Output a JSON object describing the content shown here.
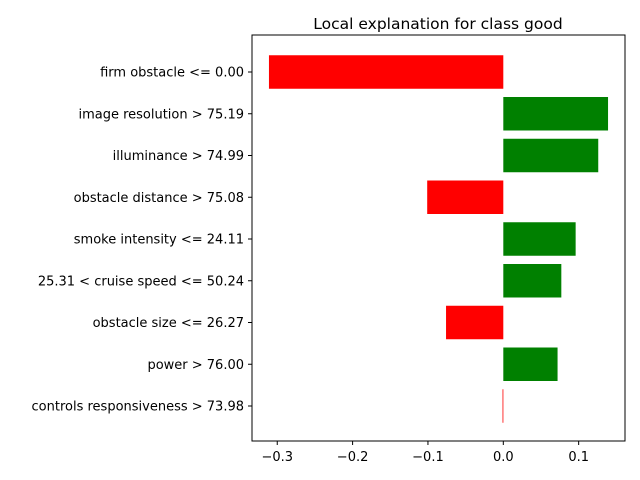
{
  "chart_data": {
    "type": "bar",
    "orientation": "horizontal",
    "title": "Local explanation for class good",
    "xlabel": "",
    "ylabel": "",
    "categories": [
      "firm obstacle <= 0.00",
      "image resolution > 75.19",
      "illuminance > 74.99",
      "obstacle distance > 75.08",
      "smoke intensity <= 24.11",
      "25.31 < cruise speed <= 50.24",
      "obstacle size <= 26.27",
      "power > 76.00",
      "controls responsiveness > 73.98"
    ],
    "values": [
      -0.311,
      0.139,
      0.126,
      -0.101,
      0.096,
      0.077,
      -0.076,
      0.072,
      -0.001
    ],
    "positive_color": "#008000",
    "negative_color": "#ff0000",
    "xlim": [
      -0.3335,
      0.1615
    ],
    "xticks": [
      -0.3,
      -0.2,
      -0.1,
      0.0,
      0.1
    ],
    "xtick_labels": [
      "−0.3",
      "−0.2",
      "−0.1",
      "0.0",
      "0.1"
    ],
    "grid": false,
    "legend": "none"
  }
}
